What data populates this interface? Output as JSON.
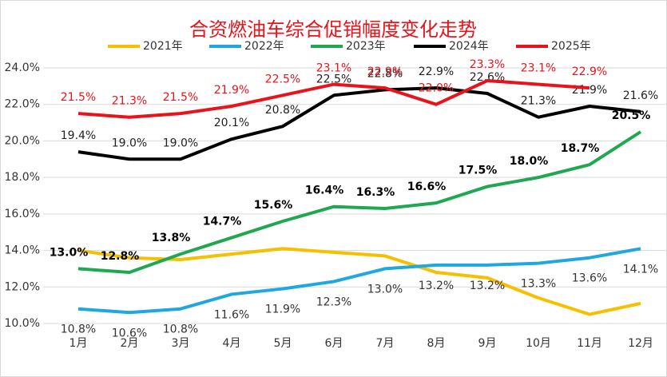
{
  "chart_data": {
    "type": "line",
    "title": "合资燃油车综合促销幅度变化走势",
    "categories": [
      "1月",
      "2月",
      "3月",
      "4月",
      "5月",
      "6月",
      "7月",
      "8月",
      "9月",
      "10月",
      "11月",
      "12月"
    ],
    "ylim": [
      10,
      24
    ],
    "yticks": [
      {
        "value": 10,
        "label": "10.0%"
      },
      {
        "value": 12,
        "label": "12.0%"
      },
      {
        "value": 14,
        "label": "14.0%"
      },
      {
        "value": 16,
        "label": "16.0%"
      },
      {
        "value": 18,
        "label": "18.0%"
      },
      {
        "value": 20,
        "label": "20.0%"
      },
      {
        "value": 22,
        "label": "22.0%"
      },
      {
        "value": 24,
        "label": "24.0%"
      }
    ],
    "grid": true,
    "series": [
      {
        "name": "2021年",
        "color": "#f5c000",
        "values": [
          14.0,
          13.6,
          13.5,
          13.8,
          14.1,
          13.9,
          13.7,
          12.8,
          12.5,
          11.4,
          10.5,
          11.1
        ]
      },
      {
        "name": "2022年",
        "color": "#1fa8e0",
        "values": [
          10.8,
          10.6,
          10.8,
          11.6,
          11.9,
          12.3,
          13.0,
          13.2,
          13.2,
          13.3,
          13.6,
          14.1
        ],
        "value_labels": [
          "10.8%",
          "10.6%",
          "10.8%",
          "11.6%",
          "11.9%",
          "12.3%",
          "13.0%",
          "13.2%",
          "13.2%",
          "13.3%",
          "13.6%",
          "14.1%"
        ]
      },
      {
        "name": "2023年",
        "color": "#1fa84f",
        "values": [
          13.0,
          12.8,
          13.8,
          14.7,
          15.6,
          16.4,
          16.3,
          16.6,
          17.5,
          18.0,
          18.7,
          20.5
        ],
        "value_labels": [
          "13.0%",
          "12.8%",
          "13.8%",
          "14.7%",
          "15.6%",
          "16.4%",
          "16.3%",
          "16.6%",
          "17.5%",
          "18.0%",
          "18.7%",
          "20.5%"
        ]
      },
      {
        "name": "2024年",
        "color": "#000000",
        "values": [
          19.4,
          19.0,
          19.0,
          20.1,
          20.8,
          22.5,
          22.8,
          22.9,
          22.6,
          21.3,
          21.9,
          21.6
        ],
        "value_labels": [
          "19.4%",
          "19.0%",
          "19.0%",
          "20.1%",
          "20.8%",
          "22.5%",
          "22.8%",
          "22.9%",
          "22.6%",
          "21.3%",
          "21.9%",
          "21.6%"
        ]
      },
      {
        "name": "2025年",
        "color": "#e8141a",
        "values": [
          21.5,
          21.3,
          21.5,
          21.9,
          22.5,
          23.1,
          22.9,
          22.0,
          23.3,
          23.1,
          22.9,
          null
        ],
        "value_labels": [
          "21.5%",
          "21.3%",
          "21.5%",
          "21.9%",
          "22.5%",
          "23.1%",
          "22.9%",
          "22.0%",
          "23.3%",
          "23.1%",
          "22.9%",
          null
        ]
      }
    ]
  }
}
